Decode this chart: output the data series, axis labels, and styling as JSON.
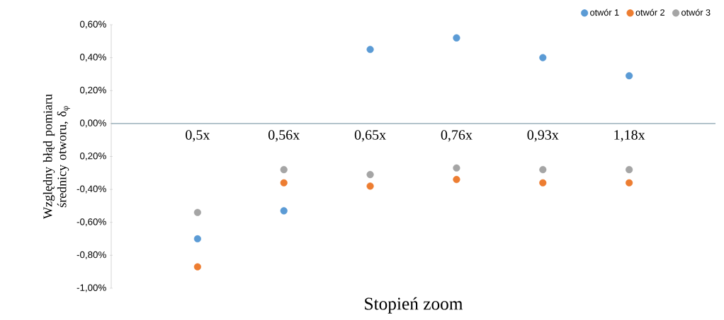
{
  "chart_data": {
    "type": "scatter",
    "xlabel": "Stopień zoom",
    "ylabel": "Względny błąd pomiaru średnicy otworu, δ$_{φ}$",
    "categories": [
      "0,5x",
      "0,56x",
      "0,65x",
      "0,76x",
      "0,93x",
      "1,18x"
    ],
    "series": [
      {
        "name": "otwór 1",
        "color": "#5b9bd5",
        "values": [
          -0.7,
          -0.53,
          0.45,
          0.52,
          0.4,
          0.29
        ]
      },
      {
        "name": "otwór 2",
        "color": "#ed7d31",
        "values": [
          -0.87,
          -0.36,
          -0.38,
          -0.34,
          -0.36,
          -0.36
        ]
      },
      {
        "name": "otwór 3",
        "color": "#a5a5a5",
        "values": [
          -0.54,
          -0.28,
          -0.31,
          -0.27,
          -0.28,
          -0.28
        ]
      }
    ],
    "ylim": [
      -1.0,
      0.6
    ],
    "yticks": [
      {
        "value": -1.0,
        "label": "-1,00%"
      },
      {
        "value": -0.8,
        "label": "-0,80%"
      },
      {
        "value": -0.6,
        "label": "-0,60%"
      },
      {
        "value": -0.4,
        "label": "-0,40%"
      },
      {
        "value": -0.2,
        "label": "0,20%"
      },
      {
        "value": 0.0,
        "label": "0,00%"
      },
      {
        "value": 0.2,
        "label": "0,20%"
      },
      {
        "value": 0.4,
        "label": "0,40%"
      },
      {
        "value": 0.6,
        "label": "0,60%"
      }
    ],
    "legend": "top right"
  }
}
